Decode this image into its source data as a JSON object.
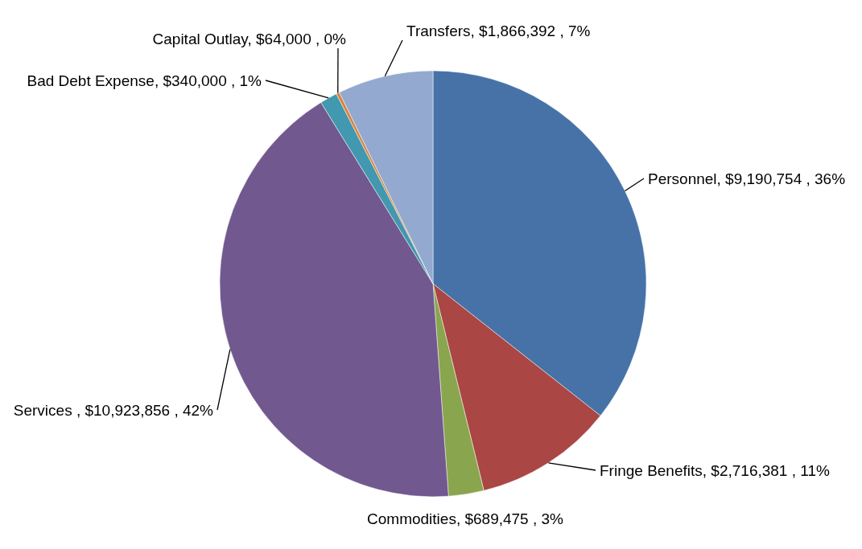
{
  "chart_data": {
    "type": "pie",
    "categories": [
      "Personnel",
      "Fringe Benefits",
      "Commodities",
      "Services",
      "Bad Debt Expense",
      "Capital Outlay",
      "Transfers"
    ],
    "values": [
      9190754,
      2716381,
      689475,
      10923856,
      340000,
      64000,
      1866392
    ],
    "colors": [
      "#4672a8",
      "#aa4643",
      "#89a54e",
      "#71588f",
      "#4198af",
      "#db843d",
      "#93a9cf"
    ],
    "value_labels": [
      "$9,190,754 , 36%",
      "$2,716,381 , 11%",
      "$689,475 , 3%",
      "$10,923,856 , 42%",
      "$340,000 , 1%",
      "$64,000 , 0%",
      "$1,866,392 , 7%"
    ],
    "legend": false
  }
}
